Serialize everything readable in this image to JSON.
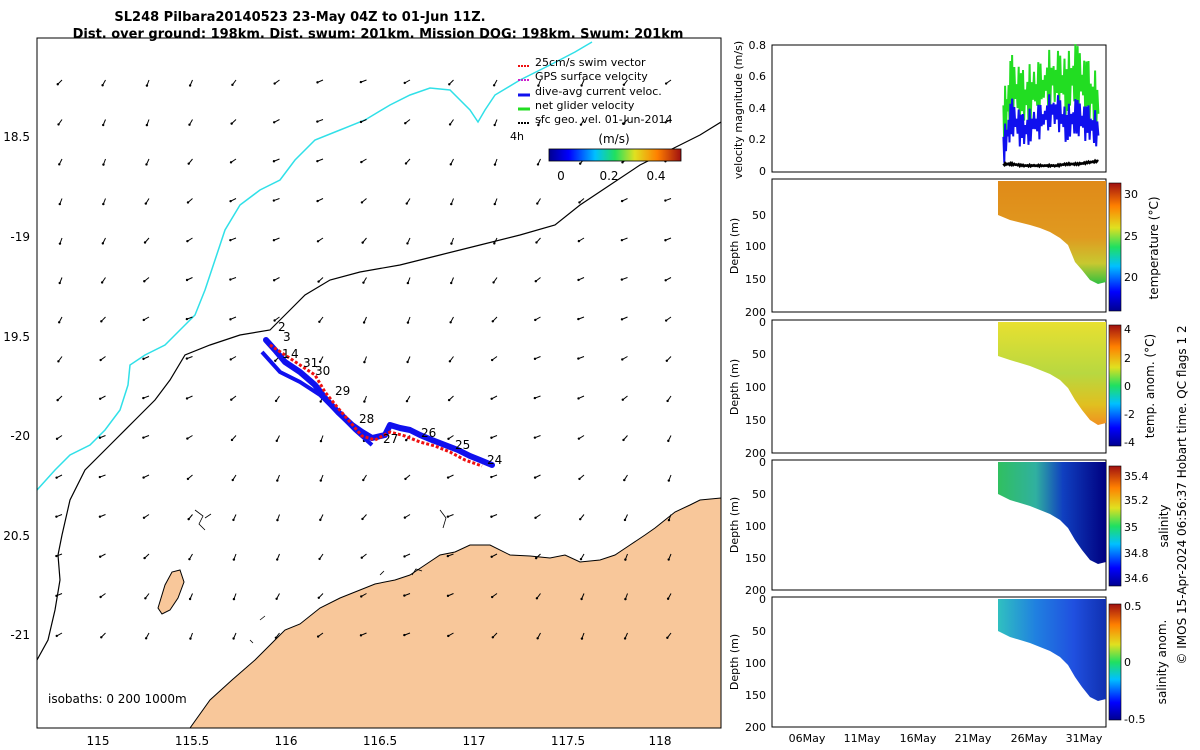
{
  "title_line1": "SL248 Pilbara20140523 23-May 04Z to 01-Jun 11Z.",
  "title_line2": "Dist. over ground: 198km. Dist. swum: 201km. Mission DOG: 198km. Swum: 201km",
  "credit": "© IMOS 15-Apr-2024 06:56:37 Hobart time. QC flags 1  2",
  "colors": {
    "track_blue": "#1010ee",
    "track_red": "#ee1010",
    "land": "#f8c79a",
    "coast_cyan": "#30e0e8",
    "net_green": "#22dd22"
  },
  "map": {
    "lon_ticks": [
      "115",
      "115.5",
      "116",
      "116.5",
      "117",
      "117.5",
      "118"
    ],
    "lat_ticks": [
      "18.5",
      "-19",
      "19.5",
      "-20",
      "20.5",
      "-21"
    ],
    "isobaths_label": "isobaths: 0   200   1000m",
    "day_labels": [
      "2",
      "3",
      "1",
      "4",
      "31",
      "30",
      "29",
      "28",
      "27",
      "26",
      "25",
      "24"
    ],
    "legend": [
      {
        "label": "25cm/s swim vector",
        "color": "#ee1010"
      },
      {
        "label": "GPS surface velocity",
        "color": "#cc22cc"
      },
      {
        "label": "dive-avg current veloc.",
        "color": "#1010ee"
      },
      {
        "label": "net glider velocity",
        "color": "#22dd22"
      },
      {
        "label": "sfc geo. vel. 01-Jun-2014",
        "color": "#000000"
      }
    ],
    "legend_tag": "4h",
    "colorbar_title": "(m/s)",
    "colorbar_ticks": [
      "0",
      "0.2",
      "0.4"
    ]
  },
  "chart_data": [
    {
      "type": "line",
      "title": "",
      "ylabel": "velocity magnitude (m/s)",
      "ylim": [
        0,
        0.8
      ],
      "yticks": [
        "0",
        "0.2",
        "0.4",
        "0.6",
        "0.8"
      ],
      "series": [
        {
          "color": "#22dd22",
          "x_days": [
            23.2,
            24,
            25,
            26,
            27,
            28,
            29,
            30,
            31,
            32
          ],
          "y": [
            0.3,
            0.55,
            0.45,
            0.5,
            0.55,
            0.6,
            0.55,
            0.62,
            0.5,
            0.4
          ]
        },
        {
          "color": "#1010ee",
          "x_days": [
            23.2,
            24,
            25,
            26,
            27,
            28,
            29,
            30,
            31,
            32
          ],
          "y": [
            0.15,
            0.35,
            0.25,
            0.3,
            0.35,
            0.4,
            0.3,
            0.35,
            0.3,
            0.25
          ]
        },
        {
          "color": "#000000",
          "x_days": [
            23.2,
            24,
            25,
            26,
            27,
            28,
            29,
            30,
            31,
            32
          ],
          "y": [
            0.05,
            0.05,
            0.04,
            0.04,
            0.04,
            0.04,
            0.05,
            0.05,
            0.06,
            0.07
          ]
        }
      ]
    },
    {
      "type": "heatmap",
      "ylabel": "Depth (m)",
      "ylim": [
        200,
        0
      ],
      "yticks": [
        "50",
        "100",
        "150",
        "200"
      ],
      "clabel": "temperature (°C)",
      "cticks": [
        "30",
        "25",
        "20"
      ]
    },
    {
      "type": "heatmap",
      "ylabel": "Depth (m)",
      "ylim": [
        200,
        0
      ],
      "yticks": [
        "0",
        "50",
        "100",
        "150",
        "200"
      ],
      "clabel": "temp. anom. (°C)",
      "cticks": [
        "4",
        "2",
        "0",
        "-2",
        "-4"
      ]
    },
    {
      "type": "heatmap",
      "ylabel": "Depth (m)",
      "ylim": [
        200,
        0
      ],
      "yticks": [
        "0",
        "50",
        "100",
        "150",
        "200"
      ],
      "clabel": "salinity",
      "cticks": [
        "35.4",
        "35.2",
        "35",
        "34.8",
        "34.6"
      ]
    },
    {
      "type": "heatmap",
      "ylabel": "Depth (m)",
      "ylim": [
        200,
        0
      ],
      "yticks": [
        "0",
        "50",
        "100",
        "150",
        "200"
      ],
      "clabel": "salinity anom.",
      "cticks": [
        "0.5",
        "0",
        "-0.5"
      ]
    }
  ],
  "time_axis": {
    "ticks": [
      "06May",
      "11May",
      "16May",
      "21May",
      "26May",
      "31May"
    ]
  }
}
